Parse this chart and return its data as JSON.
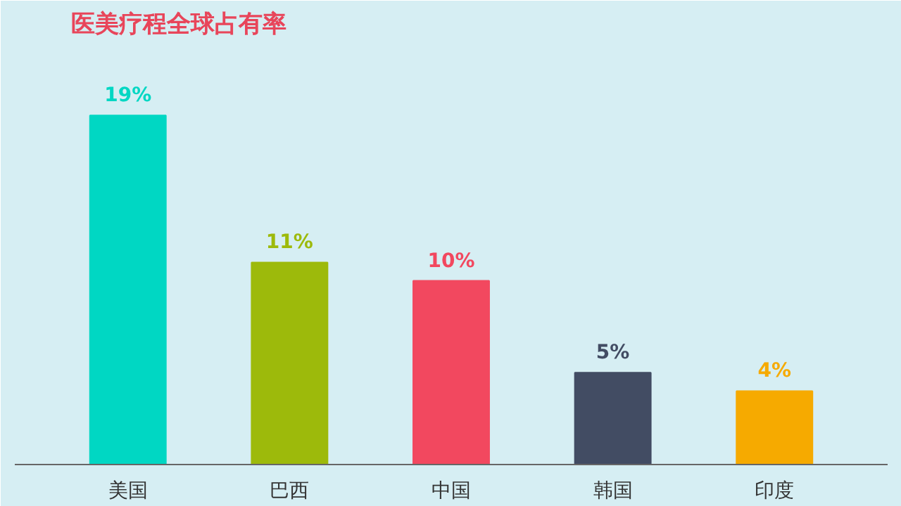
{
  "chart_data": {
    "type": "bar",
    "title": "医美疗程全球占有率",
    "categories": [
      "美国",
      "巴西",
      "中国",
      "韩国",
      "印度"
    ],
    "values": [
      19,
      11,
      10,
      5,
      4
    ],
    "colors": [
      "#00d7c3",
      "#9dba0b",
      "#f2485f",
      "#424c63",
      "#f6aa00"
    ],
    "value_labels": [
      "19%",
      "11%",
      "10%",
      "5%",
      "4%"
    ]
  }
}
